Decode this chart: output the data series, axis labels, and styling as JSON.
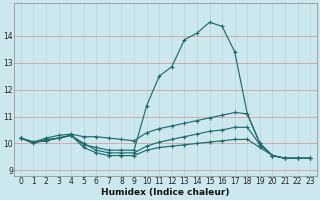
{
  "xlabel": "Humidex (Indice chaleur)",
  "xlim": [
    -0.5,
    23.5
  ],
  "ylim": [
    8.8,
    15.2
  ],
  "yticks": [
    9,
    10,
    11,
    12,
    13,
    14
  ],
  "xticks": [
    0,
    1,
    2,
    3,
    4,
    5,
    6,
    7,
    8,
    9,
    10,
    11,
    12,
    13,
    14,
    15,
    16,
    17,
    18,
    19,
    20,
    21,
    22,
    23
  ],
  "bg_color": "#cce8ee",
  "grid_color": "#b8d8df",
  "line_color": "#1e6b6b",
  "curves": [
    {
      "x": [
        0,
        1,
        2,
        3,
        4,
        5,
        6,
        7,
        8,
        9,
        10,
        11,
        12,
        13,
        14,
        15,
        16,
        17,
        18,
        19,
        20,
        21,
        22,
        23
      ],
      "y": [
        10.2,
        10.0,
        10.15,
        10.2,
        10.3,
        9.95,
        9.85,
        9.75,
        9.75,
        9.75,
        11.4,
        12.5,
        12.85,
        13.85,
        14.1,
        14.5,
        14.35,
        13.4,
        11.1,
        10.0,
        9.55,
        9.45,
        9.45,
        9.45
      ]
    },
    {
      "x": [
        0,
        1,
        2,
        3,
        4,
        5,
        6,
        7,
        8,
        9,
        10,
        11,
        12,
        13,
        14,
        15,
        16,
        17,
        18,
        19,
        20,
        21,
        22,
        23
      ],
      "y": [
        10.2,
        10.05,
        10.2,
        10.3,
        10.35,
        10.25,
        10.25,
        10.2,
        10.15,
        10.1,
        10.4,
        10.55,
        10.65,
        10.75,
        10.85,
        10.95,
        11.05,
        11.15,
        11.1,
        10.0,
        9.55,
        9.45,
        9.45,
        9.45
      ]
    },
    {
      "x": [
        0,
        1,
        2,
        3,
        4,
        5,
        6,
        7,
        8,
        9,
        10,
        11,
        12,
        13,
        14,
        15,
        16,
        17,
        18,
        19,
        20,
        21,
        22,
        23
      ],
      "y": [
        10.2,
        10.05,
        10.1,
        10.2,
        10.3,
        10.0,
        9.75,
        9.65,
        9.65,
        9.65,
        9.9,
        10.05,
        10.15,
        10.25,
        10.35,
        10.45,
        10.5,
        10.6,
        10.6,
        9.95,
        9.55,
        9.45,
        9.45,
        9.45
      ]
    },
    {
      "x": [
        0,
        1,
        2,
        3,
        4,
        5,
        6,
        7,
        8,
        9,
        10,
        11,
        12,
        13,
        14,
        15,
        16,
        17,
        18,
        19,
        20,
        21,
        22,
        23
      ],
      "y": [
        10.2,
        10.05,
        10.1,
        10.2,
        10.3,
        9.85,
        9.65,
        9.55,
        9.55,
        9.55,
        9.75,
        9.85,
        9.9,
        9.95,
        10.0,
        10.05,
        10.1,
        10.15,
        10.15,
        9.85,
        9.55,
        9.45,
        9.45,
        9.45
      ]
    }
  ]
}
